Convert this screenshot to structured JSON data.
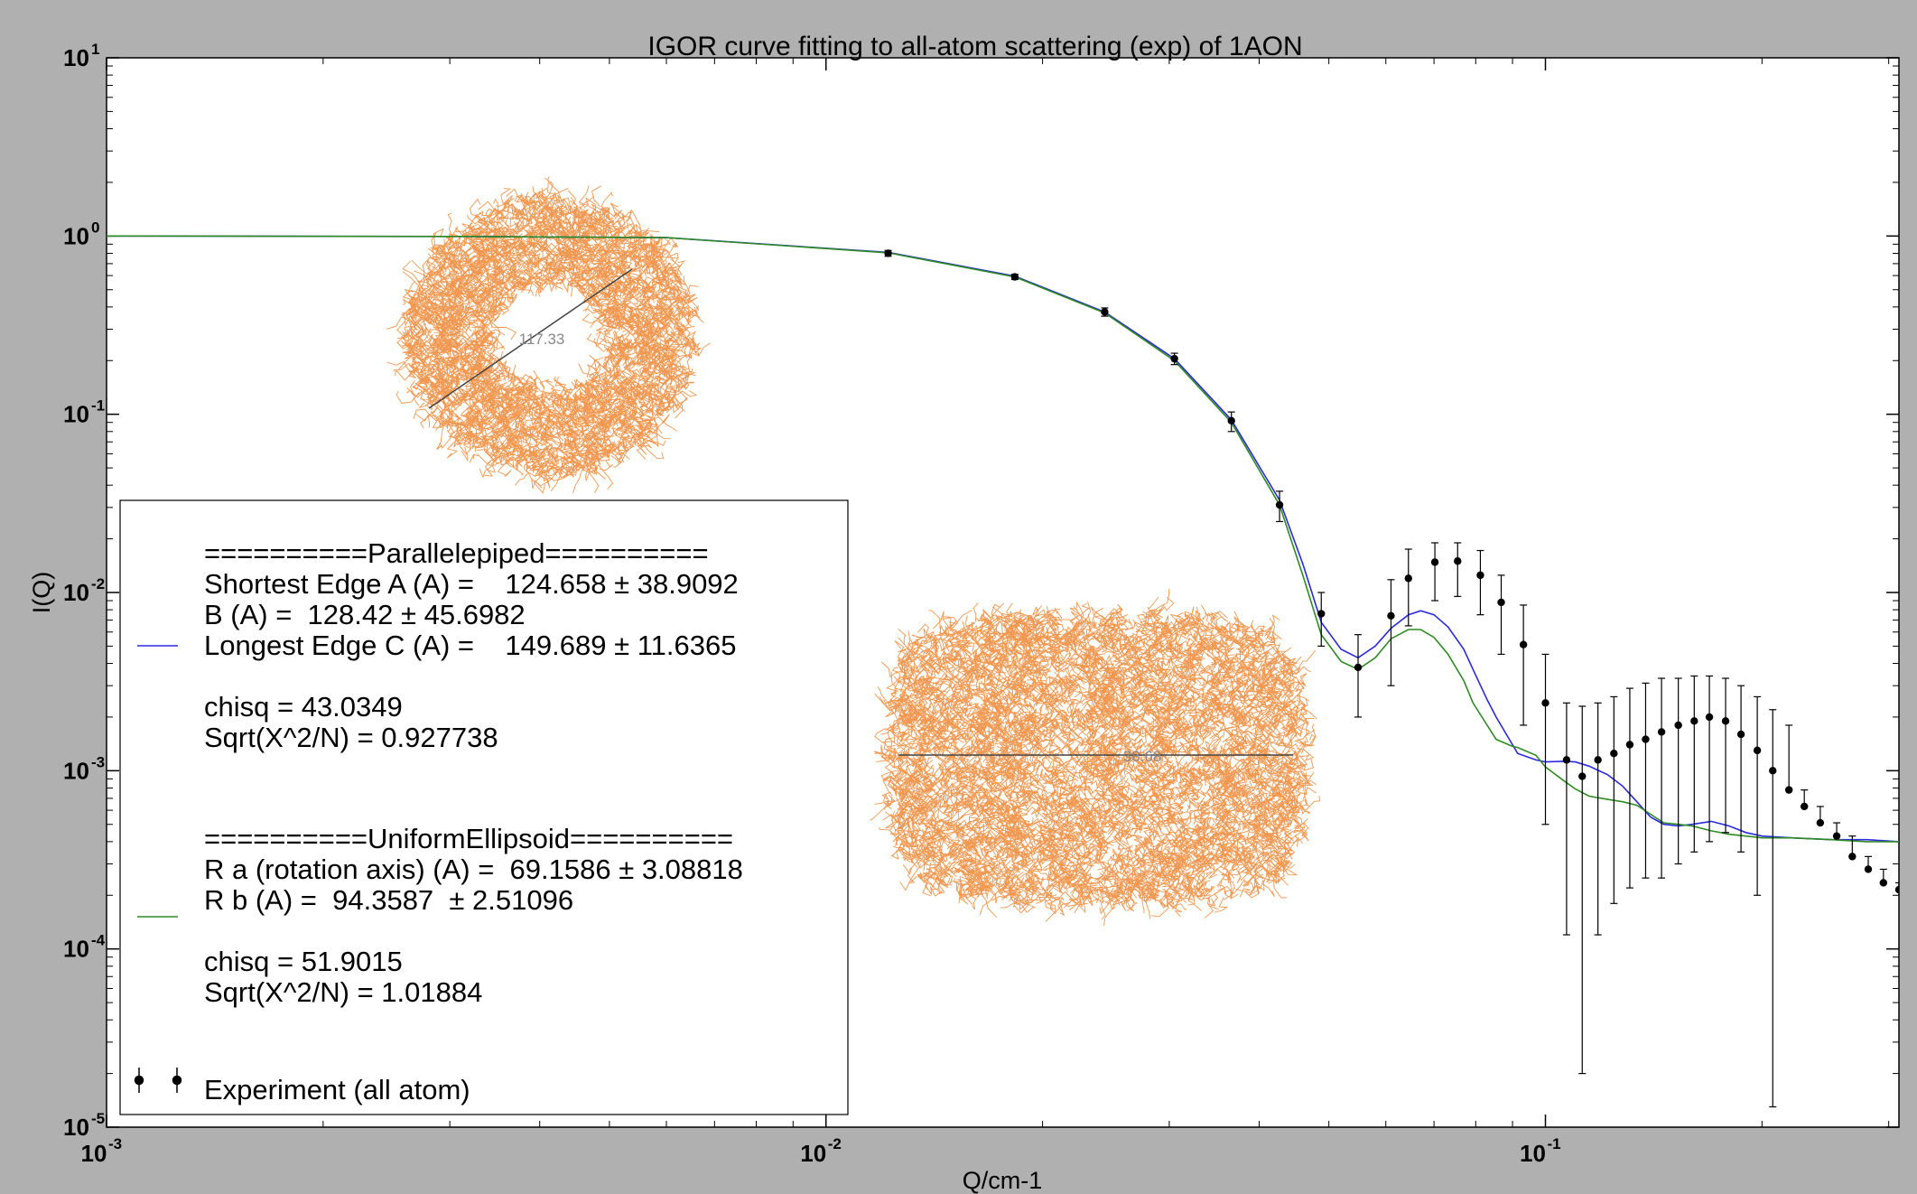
{
  "chart_data": {
    "type": "scatter",
    "title": "IGOR curve fitting to all-atom scattering (exp) of 1AON",
    "xlabel": "Q/cm-1",
    "ylabel": "I(Q)",
    "xscale": "log",
    "yscale": "log",
    "xlim": [
      0.001,
      0.31
    ],
    "ylim": [
      1e-05,
      10
    ],
    "x_ticks": [
      {
        "base": "10",
        "exp": "-3",
        "value": 0.001
      },
      {
        "base": "10",
        "exp": "-2",
        "value": 0.01
      },
      {
        "base": "10",
        "exp": "-1",
        "value": 0.1
      }
    ],
    "y_ticks": [
      {
        "base": "10",
        "exp": "1",
        "value": 10
      },
      {
        "base": "10",
        "exp": "0",
        "value": 1
      },
      {
        "base": "10",
        "exp": "-1",
        "value": 0.1
      },
      {
        "base": "10",
        "exp": "-2",
        "value": 0.01
      },
      {
        "base": "10",
        "exp": "-3",
        "value": 0.001
      },
      {
        "base": "10",
        "exp": "-4",
        "value": 0.0001
      },
      {
        "base": "10",
        "exp": "-5",
        "value": 1e-05
      }
    ],
    "grid": false,
    "legend_position": "lower-left",
    "series": [
      {
        "color": "#2a2ae0",
        "kind": "line",
        "x": [
          0.001,
          0.003,
          0.006,
          0.0122,
          0.0183,
          0.0244,
          0.0305,
          0.0366,
          0.0427,
          0.046,
          0.0488,
          0.052,
          0.0549,
          0.058,
          0.061,
          0.0645,
          0.0671,
          0.07,
          0.0732,
          0.077,
          0.0793,
          0.083,
          0.0854,
          0.09,
          0.0915,
          0.097,
          0.1,
          0.106,
          0.11,
          0.115,
          0.122,
          0.128,
          0.134,
          0.14,
          0.146,
          0.153,
          0.16,
          0.17,
          0.18,
          0.19,
          0.2,
          0.22,
          0.25,
          0.28,
          0.31
        ],
        "y": [
          1.0,
          0.995,
          0.98,
          0.81,
          0.595,
          0.375,
          0.205,
          0.093,
          0.033,
          0.0145,
          0.0068,
          0.0048,
          0.0043,
          0.005,
          0.0063,
          0.0075,
          0.0079,
          0.0075,
          0.0064,
          0.0048,
          0.0037,
          0.0025,
          0.002,
          0.0014,
          0.00125,
          0.00115,
          0.00112,
          0.00113,
          0.00112,
          0.00106,
          0.00095,
          0.00082,
          0.00067,
          0.00055,
          0.0005,
          0.00049,
          0.0005,
          0.00052,
          0.00049,
          0.00045,
          0.00043,
          0.00042,
          0.00041,
          0.00041,
          0.0004
        ]
      },
      {
        "color": "#2e8b22",
        "kind": "line",
        "x": [
          0.001,
          0.003,
          0.006,
          0.0122,
          0.0183,
          0.0244,
          0.0305,
          0.0366,
          0.0427,
          0.046,
          0.0488,
          0.052,
          0.0549,
          0.058,
          0.061,
          0.0645,
          0.0671,
          0.07,
          0.0732,
          0.077,
          0.0793,
          0.083,
          0.0854,
          0.09,
          0.0915,
          0.097,
          0.1,
          0.106,
          0.11,
          0.115,
          0.122,
          0.128,
          0.134,
          0.14,
          0.146,
          0.153,
          0.16,
          0.17,
          0.18,
          0.19,
          0.2,
          0.22,
          0.25,
          0.28,
          0.31
        ],
        "y": [
          1.0,
          0.995,
          0.98,
          0.805,
          0.59,
          0.37,
          0.2,
          0.09,
          0.031,
          0.0125,
          0.0058,
          0.0041,
          0.0037,
          0.0043,
          0.0055,
          0.0062,
          0.0062,
          0.0056,
          0.0045,
          0.0032,
          0.0024,
          0.0018,
          0.0015,
          0.00137,
          0.00135,
          0.00122,
          0.00105,
          0.00088,
          0.00079,
          0.00072,
          0.00069,
          0.00067,
          0.00064,
          0.00057,
          0.00051,
          0.0005,
          0.00049,
          0.00046,
          0.00044,
          0.00043,
          0.00042,
          0.00042,
          0.00041,
          0.0004,
          0.0004
        ]
      },
      {
        "name": "Experiment (all atom)",
        "color": "#000000",
        "kind": "errorbar",
        "x": [
          0.0122,
          0.0183,
          0.0244,
          0.0305,
          0.0366,
          0.0427,
          0.0488,
          0.0549,
          0.061,
          0.0645,
          0.0702,
          0.0755,
          0.0812,
          0.0868,
          0.0932,
          0.1,
          0.107,
          0.1125,
          0.1183,
          0.1245,
          0.131,
          0.1378,
          0.145,
          0.153,
          0.161,
          0.169,
          0.178,
          0.187,
          0.197,
          0.207,
          0.218,
          0.229,
          0.241,
          0.254,
          0.267,
          0.281,
          0.295,
          0.31
        ],
        "y": [
          0.8,
          0.59,
          0.375,
          0.205,
          0.092,
          0.031,
          0.0076,
          0.0038,
          0.0074,
          0.012,
          0.0148,
          0.015,
          0.0125,
          0.0088,
          0.0051,
          0.0024,
          0.00115,
          0.00093,
          0.00115,
          0.00125,
          0.0014,
          0.0015,
          0.00165,
          0.0018,
          0.0019,
          0.002,
          0.0019,
          0.0016,
          0.0013,
          0.001,
          0.00078,
          0.00063,
          0.00051,
          0.00043,
          0.00033,
          0.00028,
          0.000235,
          0.000215
        ],
        "y_low": [
          0.77,
          0.57,
          0.355,
          0.19,
          0.08,
          0.025,
          0.005,
          0.002,
          0.003,
          0.0065,
          0.009,
          0.0095,
          0.0075,
          0.0045,
          0.0018,
          0.0005,
          0.00012,
          2e-05,
          0.00012,
          0.00018,
          0.00022,
          0.00025,
          0.00025,
          0.0003,
          0.00035,
          0.0004,
          0.00045,
          0.00035,
          0.0002,
          1.3e-05,
          0.00078,
          0.00063,
          0.00051,
          0.00043,
          0.00033,
          0.00028,
          0.000235,
          0.000215
        ],
        "y_high": [
          0.83,
          0.61,
          0.395,
          0.22,
          0.103,
          0.037,
          0.01,
          0.0058,
          0.0118,
          0.0175,
          0.019,
          0.019,
          0.0172,
          0.0125,
          0.0085,
          0.0045,
          0.0024,
          0.0023,
          0.0024,
          0.0026,
          0.0029,
          0.0031,
          0.0033,
          0.0033,
          0.0034,
          0.0034,
          0.0033,
          0.003,
          0.0026,
          0.0022,
          0.0018,
          0.00078,
          0.00063,
          0.00051,
          0.00043,
          0.00033,
          0.00028,
          0.000235
        ]
      }
    ]
  },
  "legend": {
    "blocks": [
      {
        "swatch_color": "#2a2ae0",
        "swatch_line": 5,
        "lines": [
          "==========Parallelepiped==========",
          "Shortest Edge A (A) =    124.658 ± 38.9092",
          "B (A) =  128.42 ± 45.6982",
          "Longest Edge C (A) =    149.689 ± 11.6365",
          "",
          "chisq = 43.0349",
          "Sqrt(X^2/N) = 0.927738"
        ]
      },
      {
        "swatch_color": "#2e8b22",
        "swatch_line": 3,
        "lines": [
          "==========UniformEllipsoid==========",
          "R a (rotation axis) (A) =  69.1586 ± 3.08818",
          "R b (A) =  94.3587  ± 2.51096",
          "",
          "chisq = 51.9015",
          "Sqrt(X^2/N) = 1.01884"
        ]
      }
    ],
    "experiment_label": "Experiment (all atom)"
  },
  "insets": {
    "ring_measure": "117.33",
    "slab_measure": "38.68",
    "structure_color": "#f08c3c"
  }
}
